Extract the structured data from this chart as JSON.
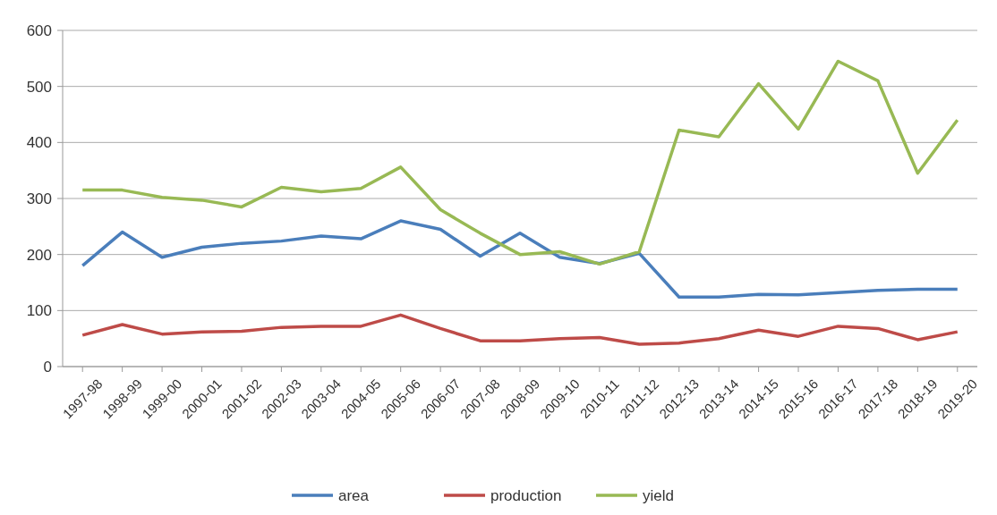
{
  "chart_data": {
    "type": "line",
    "categories": [
      "1997-98",
      "1998-99",
      "1999-00",
      "2000-01",
      "2001-02",
      "2002-03",
      "2003-04",
      "2004-05",
      "2005-06",
      "2006-07",
      "2007-08",
      "2008-09",
      "2009-10",
      "2010-11",
      "2011-12",
      "2012-13",
      "2013-14",
      "2014-15",
      "2015-16",
      "2016-17",
      "2017-18",
      "2018-19",
      "2019-20"
    ],
    "series": [
      {
        "name": "area",
        "color": "#4a7ebb",
        "values": [
          180,
          240,
          195,
          213,
          220,
          224,
          233,
          228,
          260,
          245,
          197,
          238,
          195,
          184,
          202,
          124,
          124,
          129,
          128,
          132,
          136,
          138,
          138
        ]
      },
      {
        "name": "production",
        "color": "#be4b48",
        "values": [
          56,
          75,
          58,
          62,
          63,
          70,
          72,
          72,
          92,
          68,
          46,
          46,
          50,
          52,
          40,
          42,
          50,
          65,
          54,
          72,
          68,
          48,
          62
        ]
      },
      {
        "name": "yield",
        "color": "#98b954",
        "values": [
          315,
          315,
          302,
          297,
          285,
          320,
          312,
          318,
          356,
          280,
          238,
          200,
          205,
          183,
          205,
          422,
          410,
          505,
          424,
          545,
          510,
          345,
          440
        ]
      }
    ],
    "ylim": [
      0,
      600
    ],
    "yticks": [
      0,
      100,
      200,
      300,
      400,
      500,
      600
    ],
    "grid": "y",
    "legend": "bottom",
    "marker": "none",
    "line_style": "solid"
  }
}
